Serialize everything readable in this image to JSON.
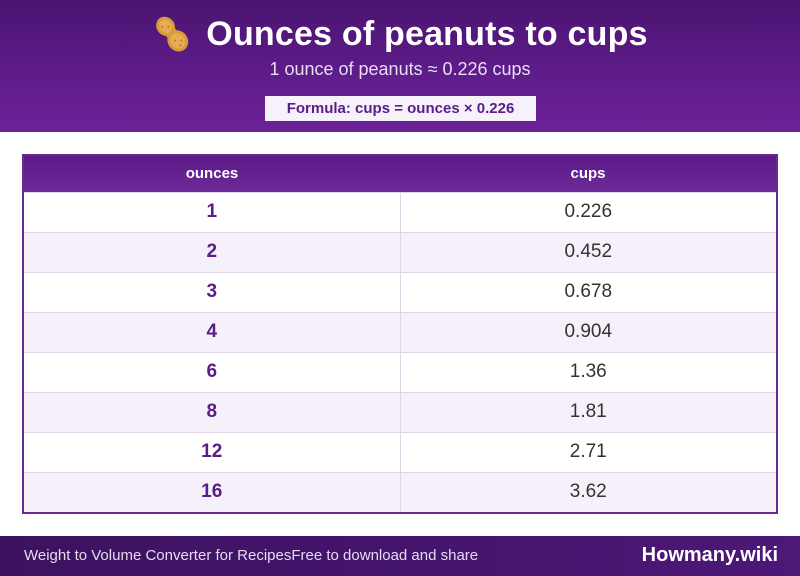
{
  "header": {
    "emoji_icon": "peanut-icon",
    "title": "Ounces of peanuts to cups",
    "subtitle": "1 ounce of peanuts ≈ 0.226 cups",
    "formula": "Formula: cups = ounces × 0.226"
  },
  "table": {
    "columns": [
      "ounces",
      "cups"
    ],
    "rows": [
      {
        "ounces": "1",
        "cups": "0.226"
      },
      {
        "ounces": "2",
        "cups": "0.452"
      },
      {
        "ounces": "3",
        "cups": "0.678"
      },
      {
        "ounces": "4",
        "cups": "0.904"
      },
      {
        "ounces": "6",
        "cups": "1.36"
      },
      {
        "ounces": "8",
        "cups": "1.81"
      },
      {
        "ounces": "12",
        "cups": "2.71"
      },
      {
        "ounces": "16",
        "cups": "3.62"
      }
    ]
  },
  "footer": {
    "left_a": "Weight to Volume Converter for Recipes",
    "left_b": "Free to download and share",
    "brand": "Howmany.wiki"
  },
  "colors": {
    "header_purple": "#5e1c8a",
    "accent_purple": "#5a1c86",
    "footer_purple": "#3c1260"
  }
}
